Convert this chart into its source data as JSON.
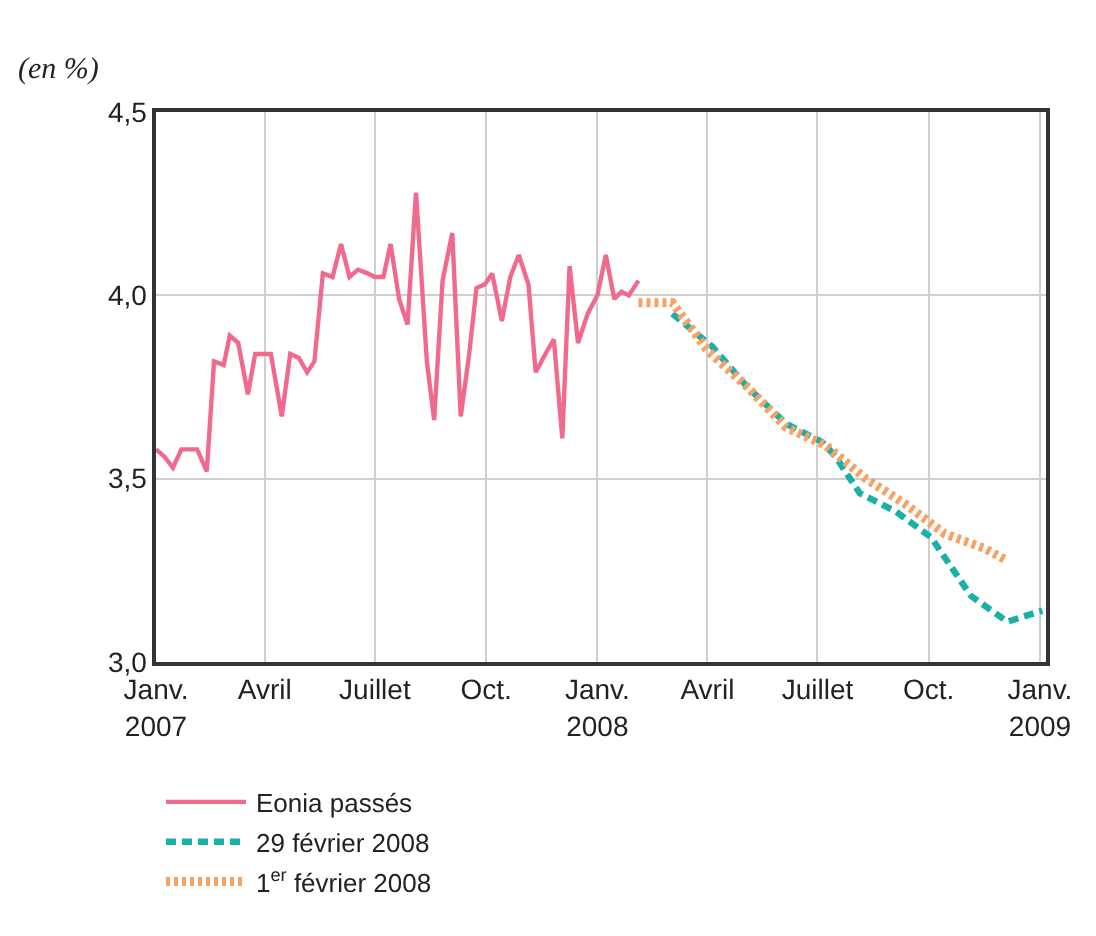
{
  "chart_data": {
    "type": "line",
    "ylabel": "(en %)",
    "xlim": [
      "2007-01-01",
      "2009-01-06"
    ],
    "ylim": [
      3.0,
      4.5
    ],
    "xticks": [
      {
        "value": "2007-01-01",
        "label": "Janv.\n2007"
      },
      {
        "value": "2007-04-01",
        "label": "Avril"
      },
      {
        "value": "2007-07-01",
        "label": "Juillet"
      },
      {
        "value": "2007-10-01",
        "label": "Oct."
      },
      {
        "value": "2008-01-01",
        "label": "Janv.\n2008"
      },
      {
        "value": "2008-04-01",
        "label": "Avril"
      },
      {
        "value": "2008-07-01",
        "label": "Juillet"
      },
      {
        "value": "2008-10-01",
        "label": "Oct."
      },
      {
        "value": "2009-01-01",
        "label": "Janv.\n2009"
      }
    ],
    "yticks": [
      {
        "value": 3.0,
        "label": "3,0"
      },
      {
        "value": 3.5,
        "label": "3,5"
      },
      {
        "value": 4.0,
        "label": "4,0"
      },
      {
        "value": 4.5,
        "label": "4,5"
      }
    ],
    "grid": true,
    "legend": "bottom left",
    "marker": "none",
    "series": [
      {
        "name": "Eonia passés",
        "color": "#f06a8e",
        "line_style": "solid",
        "x": [
          "2007-01-01",
          "2007-01-08",
          "2007-01-15",
          "2007-01-22",
          "2007-02-04",
          "2007-02-12",
          "2007-02-18",
          "2007-02-26",
          "2007-03-03",
          "2007-03-10",
          "2007-03-18",
          "2007-03-24",
          "2007-04-06",
          "2007-04-15",
          "2007-04-22",
          "2007-04-29",
          "2007-05-06",
          "2007-05-12",
          "2007-05-19",
          "2007-05-27",
          "2007-06-03",
          "2007-06-10",
          "2007-06-17",
          "2007-06-25",
          "2007-07-01",
          "2007-07-08",
          "2007-07-14",
          "2007-07-21",
          "2007-07-28",
          "2007-08-04",
          "2007-08-13",
          "2007-08-19",
          "2007-08-26",
          "2007-09-03",
          "2007-09-10",
          "2007-09-17",
          "2007-09-23",
          "2007-09-30",
          "2007-10-06",
          "2007-10-14",
          "2007-10-21",
          "2007-10-28",
          "2007-11-05",
          "2007-11-11",
          "2007-11-19",
          "2007-11-26",
          "2007-12-03",
          "2007-12-09",
          "2007-12-16",
          "2007-12-24",
          "2008-01-01",
          "2008-01-08",
          "2008-01-15",
          "2008-01-21",
          "2008-01-27",
          "2008-02-04"
        ],
        "values": [
          3.58,
          3.56,
          3.53,
          3.58,
          3.58,
          3.52,
          3.82,
          3.81,
          3.89,
          3.87,
          3.73,
          3.84,
          3.84,
          3.67,
          3.84,
          3.83,
          3.79,
          3.82,
          4.06,
          4.05,
          4.14,
          4.05,
          4.07,
          4.06,
          4.05,
          4.05,
          4.14,
          3.99,
          3.92,
          4.28,
          3.82,
          3.66,
          4.04,
          4.17,
          3.67,
          3.84,
          4.02,
          4.03,
          4.06,
          3.93,
          4.05,
          4.11,
          4.03,
          3.79,
          3.84,
          3.88,
          3.61,
          4.08,
          3.87,
          3.95,
          4.0,
          4.11,
          3.99,
          4.01,
          4.0,
          4.04
        ]
      },
      {
        "name": "29 février 2008",
        "color": "#1ab0a8",
        "line_style": "dashed",
        "x": [
          "2008-03-03",
          "2008-04-05",
          "2008-05-04",
          "2008-06-05",
          "2008-07-05",
          "2008-07-16",
          "2008-08-05",
          "2008-09-04",
          "2008-10-03",
          "2008-11-05",
          "2008-12-05",
          "2009-01-03"
        ],
        "values": [
          3.95,
          3.86,
          3.75,
          3.65,
          3.6,
          3.56,
          3.46,
          3.41,
          3.34,
          3.18,
          3.11,
          3.14
        ]
      },
      {
        "name": "1$^{er}$ février 2008",
        "color": "#f7a164",
        "line_style": "dotted",
        "x": [
          "2008-02-04",
          "2008-03-03",
          "2008-04-01",
          "2008-05-04",
          "2008-06-05",
          "2008-07-08",
          "2008-08-10",
          "2008-09-12",
          "2008-10-14",
          "2008-11-16",
          "2008-12-03"
        ],
        "values": [
          3.98,
          3.98,
          3.85,
          3.75,
          3.64,
          3.59,
          3.5,
          3.43,
          3.35,
          3.31,
          3.28
        ]
      }
    ]
  }
}
